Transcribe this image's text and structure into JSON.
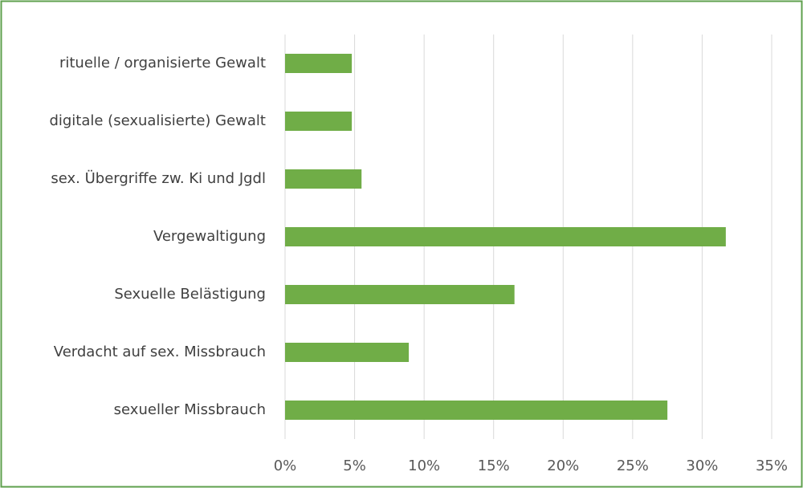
{
  "chart_data": {
    "type": "barh",
    "categories": [
      "rituelle / organisierte Gewalt",
      "digitale (sexualisierte) Gewalt",
      "sex. Übergriffe zw. Ki und Jgdl",
      "Vergewaltigung",
      "Sexuelle Belästigung",
      "Verdacht auf sex. Missbrauch",
      "sexueller Missbrauch"
    ],
    "values": [
      4.8,
      4.8,
      5.5,
      31.7,
      16.5,
      8.9,
      27.5
    ],
    "color": "#70ad47",
    "xlim": [
      0,
      35
    ],
    "xticks": [
      {
        "value": 0,
        "label": "0%"
      },
      {
        "value": 5,
        "label": "5%"
      },
      {
        "value": 10,
        "label": "10%"
      },
      {
        "value": 15,
        "label": "15%"
      },
      {
        "value": 20,
        "label": "20%"
      },
      {
        "value": 25,
        "label": "25%"
      },
      {
        "value": 30,
        "label": "30%"
      },
      {
        "value": 35,
        "label": "35%"
      }
    ],
    "grid": true
  }
}
